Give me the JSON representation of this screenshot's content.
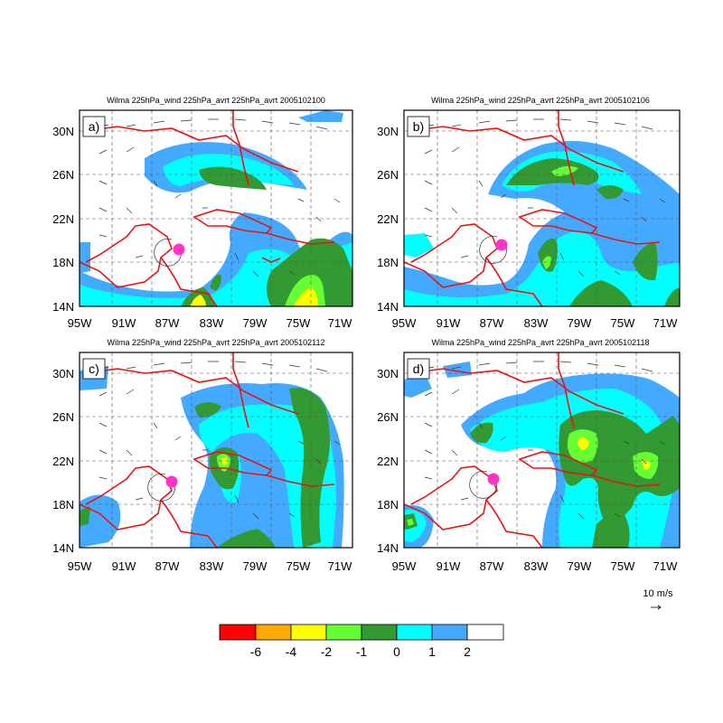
{
  "colors": {
    "red": "#ff0000",
    "orange": "#ffaa00",
    "yellow": "#ffff00",
    "lightgreen": "#66ff33",
    "darkgreen": "#339933",
    "cyan": "#00ffff",
    "lightblue": "#44aaff",
    "white": "#ffffff",
    "coast": "#ee1111",
    "storm": "#ff33cc"
  },
  "panels": [
    {
      "label": "a)",
      "title": "Wilma 225hPa_wind 225hPa_avrt 225hPa_avrt 2005102100"
    },
    {
      "label": "b)",
      "title": "Wilma 225hPa_wind 225hPa_avrt 225hPa_avrt 2005102106"
    },
    {
      "label": "c)",
      "title": "Wilma 225hPa_wind 225hPa_avrt 225hPa_avrt 2005102112"
    },
    {
      "label": "d)",
      "title": "Wilma 225hPa_wind 225hPa_avrt 225hPa_avrt 2005102118"
    }
  ],
  "axes": {
    "x_ticks": [
      "95W",
      "91W",
      "87W",
      "83W",
      "79W",
      "75W",
      "71W"
    ],
    "y_ticks": [
      "14N",
      "18N",
      "22N",
      "26N",
      "30N"
    ]
  },
  "colorbar": {
    "labels": [
      "-6",
      "-4",
      "-2",
      "-1",
      "0",
      "1",
      "2"
    ],
    "colors": [
      "#ff0000",
      "#ffaa00",
      "#ffff00",
      "#66ff33",
      "#339933",
      "#00ffff",
      "#44aaff",
      "#ffffff"
    ]
  },
  "ref_vector": {
    "label": "10 m/s"
  }
}
